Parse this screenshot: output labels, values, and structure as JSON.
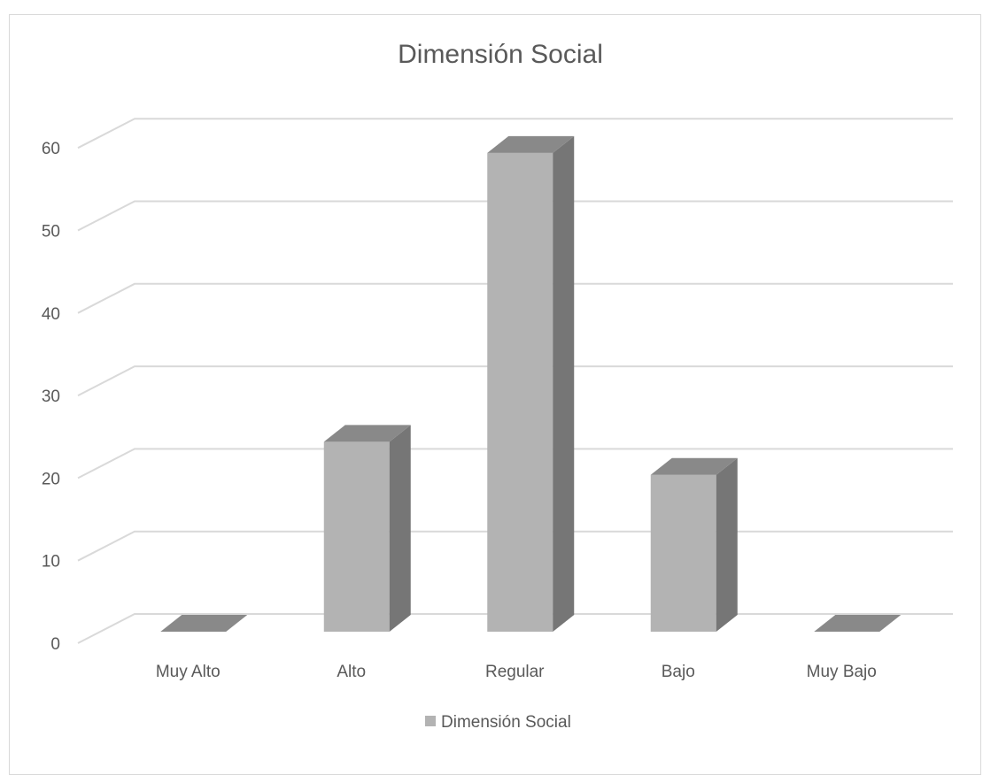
{
  "chart_data": {
    "type": "bar",
    "style": "3d-column",
    "title": "Dimensión Social",
    "xlabel": "",
    "ylabel": "",
    "categories": [
      "Muy Alto",
      "Alto",
      "Regular",
      "Bajo",
      "Muy Bajo"
    ],
    "series": [
      {
        "name": "Dimensión Social",
        "values": [
          0,
          23,
          58,
          19,
          0
        ]
      }
    ],
    "ylim": [
      0,
      60
    ],
    "yticks": [
      "0",
      "10",
      "20",
      "30",
      "40",
      "50",
      "60"
    ],
    "grid": true,
    "legend_position": "bottom",
    "colors": {
      "bar_front": "#b3b3b3",
      "bar_side": "#767676",
      "bar_top": "#898989",
      "gridline": "#d9d9d9",
      "text": "#595959"
    }
  }
}
